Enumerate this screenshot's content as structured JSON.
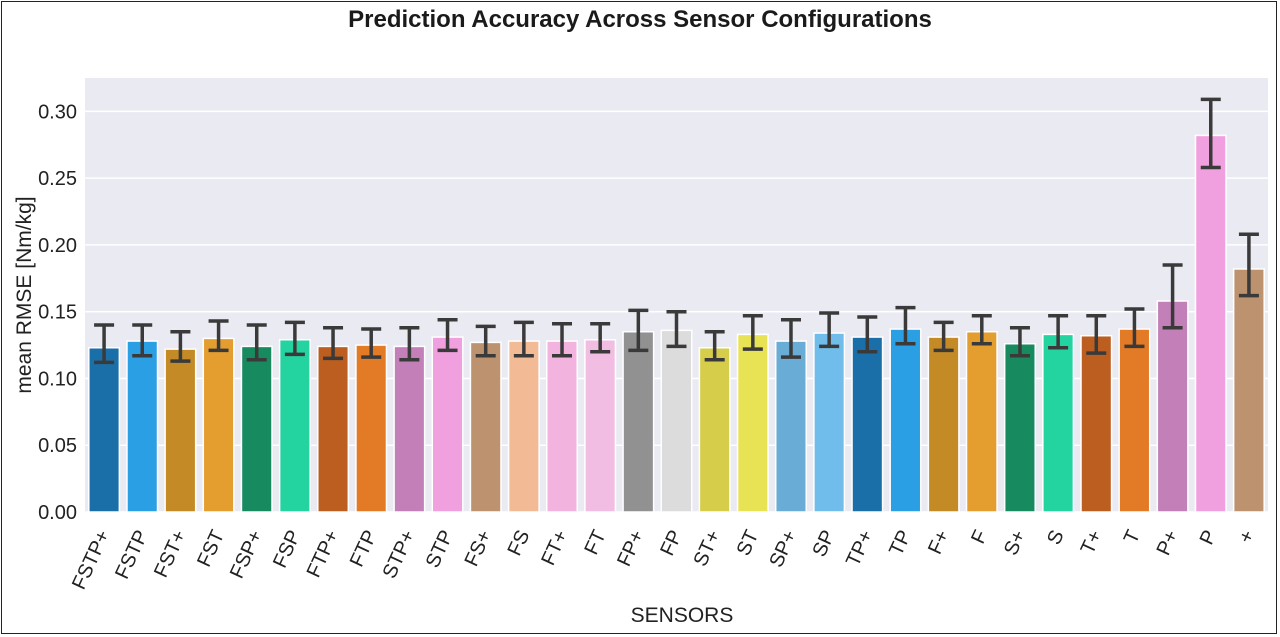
{
  "chart_data": {
    "type": "bar",
    "title": "Prediction Accuracy Across Sensor Configurations",
    "xlabel": "SENSORS",
    "ylabel": "mean RMSE [Nm/kg]",
    "ylim": [
      0,
      0.325
    ],
    "yticks": [
      0.0,
      0.05,
      0.1,
      0.15,
      0.2,
      0.25,
      0.3
    ],
    "ytick_labels": [
      "0.00",
      "0.05",
      "0.10",
      "0.15",
      "0.20",
      "0.25",
      "0.30"
    ],
    "grid": true,
    "categories": [
      "FSTP+",
      "FSTP",
      "FST+",
      "FST",
      "FSP+",
      "FSP",
      "FTP+",
      "FTP",
      "STP+",
      "STP",
      "FS+",
      "FS",
      "FT+",
      "FT",
      "FP+",
      "FP",
      "ST+",
      "ST",
      "SP+",
      "SP",
      "TP+",
      "TP",
      "F+",
      "F",
      "S+",
      "S",
      "T+",
      "T",
      "P+",
      "P",
      "+"
    ],
    "values": [
      0.123,
      0.128,
      0.122,
      0.13,
      0.124,
      0.129,
      0.124,
      0.125,
      0.124,
      0.131,
      0.127,
      0.128,
      0.128,
      0.129,
      0.135,
      0.136,
      0.123,
      0.133,
      0.128,
      0.134,
      0.131,
      0.137,
      0.131,
      0.135,
      0.126,
      0.133,
      0.132,
      0.137,
      0.158,
      0.282,
      0.182
    ],
    "error_low": [
      0.112,
      0.117,
      0.113,
      0.121,
      0.114,
      0.118,
      0.115,
      0.116,
      0.114,
      0.121,
      0.117,
      0.117,
      0.117,
      0.12,
      0.121,
      0.124,
      0.114,
      0.122,
      0.116,
      0.124,
      0.12,
      0.126,
      0.121,
      0.126,
      0.117,
      0.123,
      0.119,
      0.124,
      0.138,
      0.258,
      0.162
    ],
    "error_high": [
      0.14,
      0.14,
      0.135,
      0.143,
      0.14,
      0.142,
      0.138,
      0.137,
      0.138,
      0.144,
      0.139,
      0.142,
      0.141,
      0.141,
      0.151,
      0.15,
      0.135,
      0.147,
      0.144,
      0.149,
      0.146,
      0.153,
      0.142,
      0.147,
      0.138,
      0.147,
      0.147,
      0.152,
      0.185,
      0.309,
      0.208
    ],
    "colors": [
      "#1a6fa8",
      "#2a9fe3",
      "#c48a26",
      "#e49e2f",
      "#178a60",
      "#24d4a0",
      "#bb5e1f",
      "#e27a26",
      "#c37fb8",
      "#f0a0de",
      "#bd926e",
      "#f2bb96",
      "#f2b4de",
      "#f2bde2",
      "#919191",
      "#dcdcdc",
      "#d6cd4b",
      "#e8e255",
      "#69acd6",
      "#70bceb",
      "#1a6fa8",
      "#2a9fe3",
      "#c48a26",
      "#e49e2f",
      "#178a60",
      "#24d4a0",
      "#bb5e1f",
      "#e27a26",
      "#c37fb8",
      "#f0a0de",
      "#bd926e"
    ],
    "plot_background": "#eaeaf2",
    "gridline_color": "#ffffff",
    "errorbar_color": "#3a3a3a"
  }
}
